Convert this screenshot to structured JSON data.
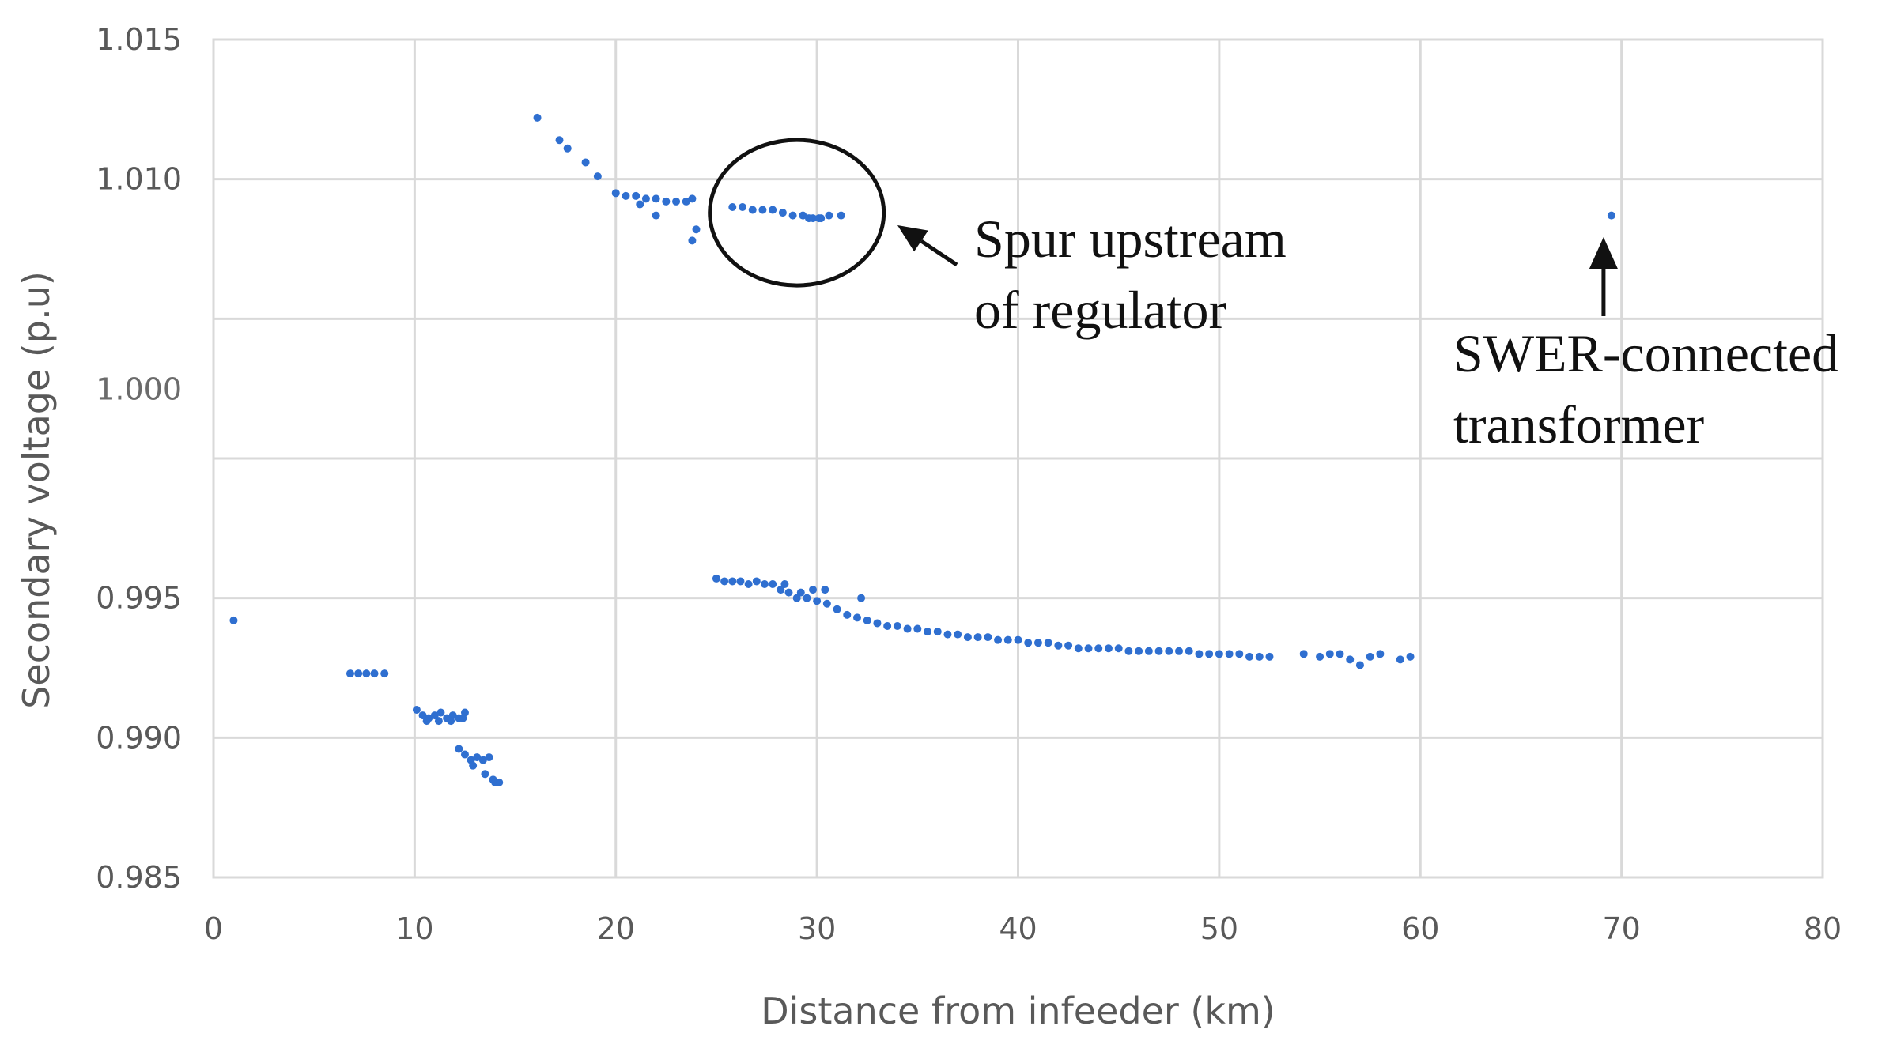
{
  "chart_data": {
    "type": "scatter",
    "title": "",
    "xlabel": "Distance from infeeder (km)",
    "ylabel": "Secondary voltage (p.u)",
    "xlim": [
      0,
      80
    ],
    "xticks": [
      0,
      10,
      20,
      30,
      40,
      50,
      60,
      70,
      80
    ],
    "xtick_labels": [
      "0",
      "10",
      "20",
      "30",
      "40",
      "50",
      "60",
      "70",
      "80"
    ],
    "yticks": [
      0.985,
      0.99,
      0.995,
      1.0,
      1.005,
      1.01,
      1.015
    ],
    "ytick_labels": [
      "0.985",
      "0.990",
      "0.995",
      "",
      "",
      "1.010",
      "1.015"
    ],
    "ylim": [
      0.985,
      1.015
    ],
    "stray_label": "1.000",
    "grid": true,
    "marker_color": "#2f6fd0",
    "gridline_color": "#d9d9d9",
    "annotations": [
      {
        "lines": [
          "Spur upstream",
          "of regulator"
        ],
        "target": "circled group near 26-31 km, 1.009 p.u"
      },
      {
        "lines": [
          "SWER-connected",
          "transformer"
        ],
        "target": "single point at 69.5 km, 1.0087 p.u"
      }
    ],
    "series": [
      {
        "name": "Secondary voltage",
        "x": [
          1.0,
          6.8,
          7.2,
          7.6,
          8.0,
          8.5,
          10.1,
          10.4,
          10.7,
          11.0,
          11.3,
          11.6,
          11.9,
          12.2,
          12.5,
          10.6,
          11.2,
          11.8,
          12.4,
          12.2,
          12.5,
          12.8,
          13.1,
          13.4,
          13.7,
          14.0,
          14.2,
          12.9,
          13.5,
          13.9,
          16.1,
          17.2,
          17.6,
          18.5,
          19.1,
          20.0,
          20.5,
          21.0,
          21.5,
          22.0,
          22.5,
          23.0,
          23.5,
          23.8,
          21.2,
          22.0,
          23.8,
          24.0,
          25.8,
          26.3,
          26.8,
          27.3,
          27.8,
          28.3,
          28.8,
          29.3,
          29.8,
          30.2,
          30.6,
          31.2,
          29.6,
          30.1,
          25.0,
          25.4,
          25.8,
          26.2,
          26.6,
          27.0,
          27.4,
          27.8,
          28.2,
          28.6,
          29.0,
          29.5,
          30.0,
          30.5,
          28.4,
          29.2,
          29.8,
          30.4,
          32.2,
          31.0,
          31.5,
          32.0,
          32.5,
          33.0,
          33.5,
          34.0,
          34.5,
          35.0,
          35.5,
          36.0,
          36.5,
          37.0,
          37.5,
          38.0,
          38.5,
          39.0,
          39.5,
          40.0,
          40.5,
          41.0,
          41.5,
          42.0,
          42.5,
          43.0,
          43.5,
          44.0,
          44.5,
          45.0,
          45.5,
          46.0,
          46.5,
          47.0,
          47.5,
          48.0,
          48.5,
          49.0,
          49.5,
          50.0,
          50.5,
          51.0,
          51.5,
          52.0,
          52.5,
          54.2,
          55.0,
          55.5,
          56.0,
          56.5,
          57.0,
          57.5,
          58.0,
          59.0,
          59.5,
          69.5
        ],
        "y": [
          0.9942,
          0.9923,
          0.9923,
          0.9923,
          0.9923,
          0.9923,
          0.991,
          0.9908,
          0.9907,
          0.9908,
          0.9909,
          0.9907,
          0.9908,
          0.9907,
          0.9909,
          0.9906,
          0.9906,
          0.9906,
          0.9907,
          0.9896,
          0.9894,
          0.9892,
          0.9893,
          0.9892,
          0.9893,
          0.9884,
          0.9884,
          0.989,
          0.9887,
          0.9885,
          1.0122,
          1.0114,
          1.0111,
          1.0106,
          1.0101,
          1.0095,
          1.0094,
          1.0094,
          1.0093,
          1.0093,
          1.0092,
          1.0092,
          1.0092,
          1.0093,
          1.0091,
          1.0087,
          1.0078,
          1.0082,
          1.009,
          1.009,
          1.0089,
          1.0089,
          1.0089,
          1.0088,
          1.0087,
          1.0087,
          1.0086,
          1.0086,
          1.0087,
          1.0087,
          1.0086,
          1.0086,
          0.9957,
          0.9956,
          0.9956,
          0.9956,
          0.9955,
          0.9956,
          0.9955,
          0.9955,
          0.9953,
          0.9952,
          0.995,
          0.995,
          0.9949,
          0.9948,
          0.9955,
          0.9952,
          0.9953,
          0.9953,
          0.995,
          0.9946,
          0.9944,
          0.9943,
          0.9942,
          0.9941,
          0.994,
          0.994,
          0.9939,
          0.9939,
          0.9938,
          0.9938,
          0.9937,
          0.9937,
          0.9936,
          0.9936,
          0.9936,
          0.9935,
          0.9935,
          0.9935,
          0.9934,
          0.9934,
          0.9934,
          0.9933,
          0.9933,
          0.9932,
          0.9932,
          0.9932,
          0.9932,
          0.9932,
          0.9931,
          0.9931,
          0.9931,
          0.9931,
          0.9931,
          0.9931,
          0.9931,
          0.993,
          0.993,
          0.993,
          0.993,
          0.993,
          0.9929,
          0.9929,
          0.9929,
          0.993,
          0.9929,
          0.993,
          0.993,
          0.9928,
          0.9926,
          0.9929,
          0.993,
          0.9928,
          0.9929,
          1.0087
        ]
      }
    ]
  }
}
